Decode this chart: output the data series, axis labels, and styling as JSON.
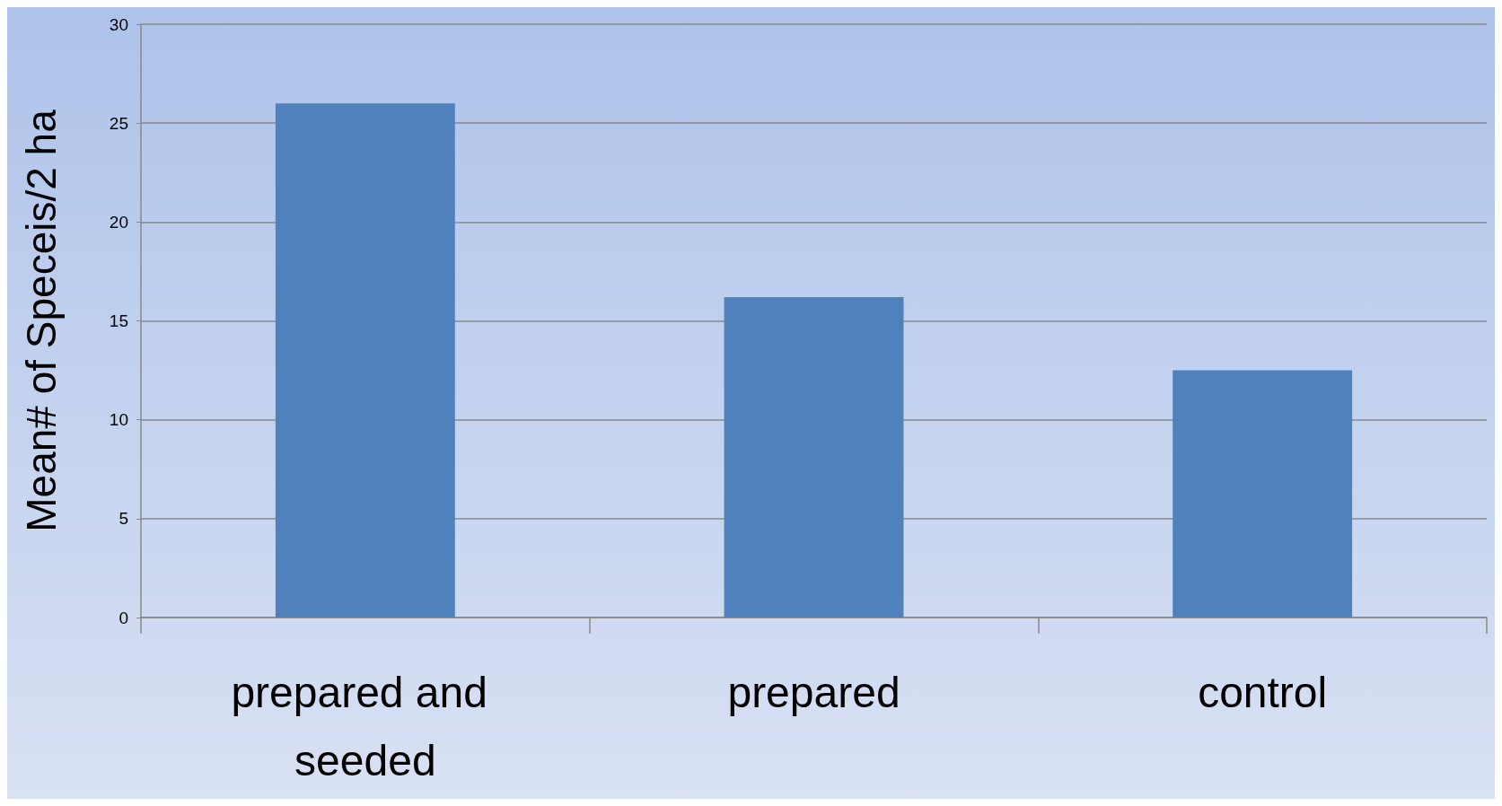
{
  "chart_data": {
    "type": "bar",
    "ylabel": "Mean# of Speceis/2 ha",
    "categories": [
      "prepared and seeded",
      "prepared",
      "control"
    ],
    "values": [
      26,
      16.2,
      12.5
    ],
    "color": "#4f81bd",
    "ylim": [
      0,
      30
    ],
    "yticks": [
      0,
      5,
      10,
      15,
      20,
      25,
      30
    ],
    "grid": "y"
  }
}
